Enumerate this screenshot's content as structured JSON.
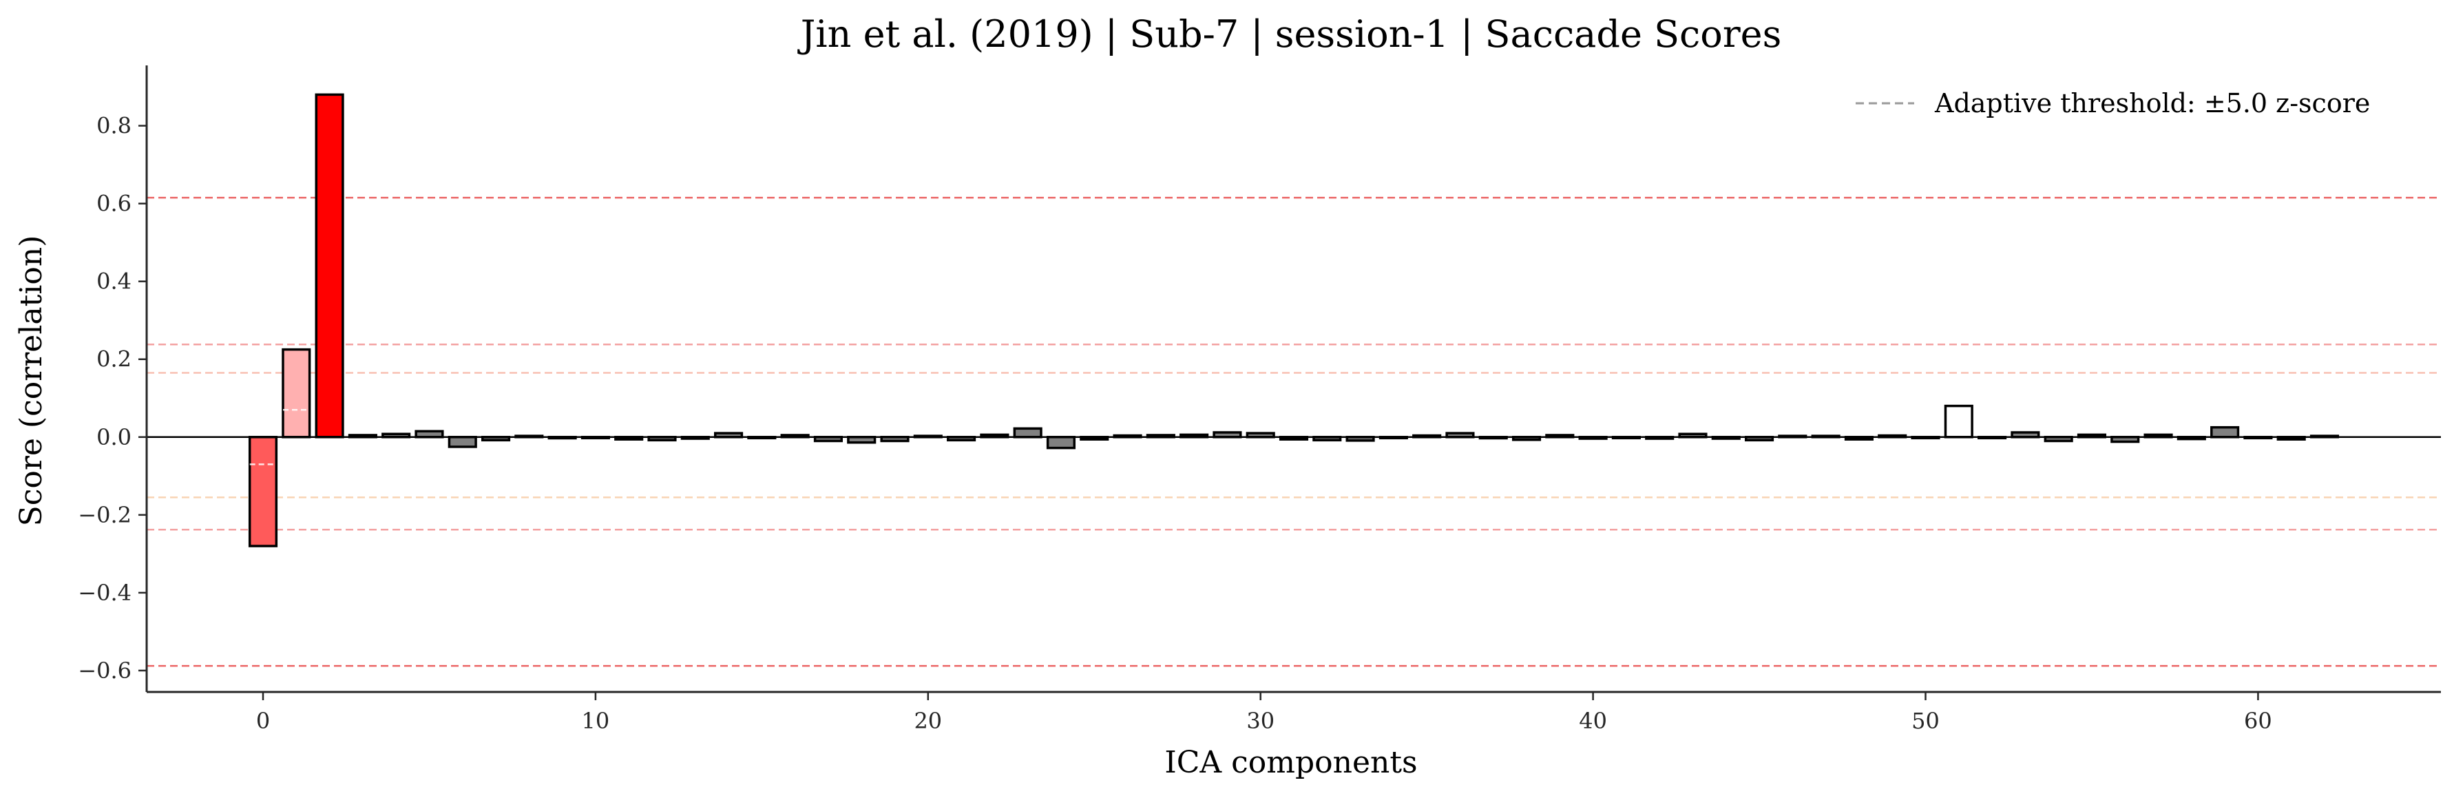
{
  "chart_data": {
    "type": "bar",
    "title": "Jin et al. (2019) | Sub-7 | session-1 | Saccade Scores",
    "xlabel": "ICA components",
    "ylabel": "Score (correlation)",
    "xlim": [
      -3.5,
      65.5
    ],
    "ylim": [
      -0.655,
      0.955
    ],
    "x_ticks": [
      0,
      10,
      20,
      30,
      40,
      50,
      60
    ],
    "y_ticks": [
      -0.6,
      -0.4,
      -0.2,
      0.0,
      0.2,
      0.4,
      0.6,
      0.8
    ],
    "y_tick_labels": [
      "−0.6",
      "−0.4",
      "−0.2",
      "0.0",
      "0.2",
      "0.4",
      "0.6",
      "0.8"
    ],
    "legend": {
      "position": "top-right",
      "label": "Adaptive threshold: ±5.0 z-score"
    },
    "colors": {
      "bar_default": "#808080",
      "bar_edge": "#000000",
      "bar_white": "#ffffff",
      "bar_excluded_strong": "#ff0000",
      "bar_excluded_medium": "#ff5a5a",
      "bar_excluded_light": "#ffb0b0"
    },
    "series": [
      {
        "x": [
          0,
          1,
          2,
          3,
          4,
          5,
          6,
          7,
          8,
          9,
          10,
          11,
          12,
          13,
          14,
          15,
          16,
          17,
          18,
          19,
          20,
          21,
          22,
          23,
          24,
          25,
          26,
          27,
          28,
          29,
          30,
          31,
          32,
          33,
          34,
          35,
          36,
          37,
          38,
          39,
          40,
          41,
          42,
          43,
          44,
          45,
          46,
          47,
          48,
          49,
          50,
          51,
          52,
          53,
          54,
          55,
          56,
          57,
          58,
          59,
          60,
          61,
          62
        ],
        "values": [
          -0.28,
          0.225,
          0.88,
          0.005,
          0.008,
          0.015,
          -0.025,
          -0.008,
          0.003,
          -0.003,
          -0.002,
          -0.006,
          -0.008,
          -0.004,
          0.01,
          -0.002,
          0.005,
          -0.01,
          -0.014,
          -0.01,
          0.003,
          -0.008,
          0.006,
          0.022,
          -0.028,
          -0.006,
          0.004,
          0.005,
          0.006,
          0.012,
          0.01,
          -0.006,
          -0.008,
          -0.009,
          -0.002,
          0.004,
          0.01,
          -0.003,
          -0.007,
          0.005,
          -0.004,
          -0.002,
          -0.004,
          0.008,
          -0.004,
          -0.008,
          0.003,
          0.003,
          -0.006,
          0.004,
          -0.002,
          0.08,
          -0.002,
          0.012,
          -0.01,
          0.006,
          -0.012,
          0.006,
          -0.005,
          0.025,
          -0.002,
          -0.006,
          0.003
        ],
        "colors": [
          "#ff5a5a",
          "#ffb0b0",
          "#ff0000",
          "#808080",
          "#808080",
          "#808080",
          "#808080",
          "#808080",
          "#808080",
          "#808080",
          "#808080",
          "#808080",
          "#808080",
          "#808080",
          "#808080",
          "#808080",
          "#808080",
          "#808080",
          "#808080",
          "#808080",
          "#808080",
          "#808080",
          "#808080",
          "#808080",
          "#808080",
          "#808080",
          "#808080",
          "#808080",
          "#808080",
          "#808080",
          "#808080",
          "#808080",
          "#808080",
          "#808080",
          "#808080",
          "#808080",
          "#808080",
          "#808080",
          "#808080",
          "#808080",
          "#808080",
          "#808080",
          "#808080",
          "#808080",
          "#808080",
          "#808080",
          "#808080",
          "#808080",
          "#808080",
          "#808080",
          "#808080",
          "#ffffff",
          "#808080",
          "#808080",
          "#808080",
          "#808080",
          "#808080",
          "#808080",
          "#808080",
          "#808080",
          "#808080",
          "#808080",
          "#808080"
        ]
      }
    ],
    "reference_lines": [
      {
        "y": 0.615,
        "color": "#e84a4a",
        "opacity": 0.85
      },
      {
        "y": 0.238,
        "color": "#f08a8a",
        "opacity": 0.8
      },
      {
        "y": 0.165,
        "color": "#f6b0a0",
        "opacity": 0.8
      },
      {
        "y": -0.155,
        "color": "#f6c8a0",
        "opacity": 0.8
      },
      {
        "y": -0.238,
        "color": "#f08a8a",
        "opacity": 0.8
      },
      {
        "y": -0.588,
        "color": "#e84a4a",
        "opacity": 0.85
      }
    ],
    "bar_reference_segments": [
      {
        "x": 0,
        "y": -0.07
      },
      {
        "x": 1,
        "y": 0.07
      }
    ]
  }
}
